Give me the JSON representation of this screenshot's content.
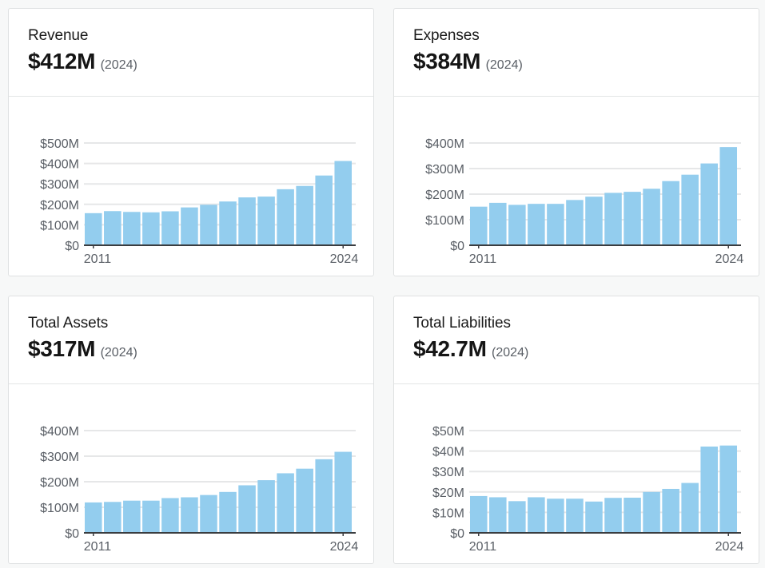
{
  "colors": {
    "bar": "#93cdee",
    "grid": "#e6e7e8",
    "axis": "#3a3d40",
    "label": "#5a5f66",
    "background": "#f7f8f8",
    "card": "#ffffff"
  },
  "cards": [
    {
      "title": "Revenue",
      "value": "$412M",
      "year": "(2024)"
    },
    {
      "title": "Expenses",
      "value": "$384M",
      "year": "(2024)"
    },
    {
      "title": "Total Assets",
      "value": "$317M",
      "year": "(2024)"
    },
    {
      "title": "Total Liabilities",
      "value": "$42.7M",
      "year": "(2024)"
    }
  ],
  "chart_data": [
    {
      "type": "bar",
      "title": "Revenue",
      "xlabel": "",
      "ylabel": "",
      "categories": [
        "2011",
        "2012",
        "2013",
        "2014",
        "2015",
        "2016",
        "2017",
        "2018",
        "2019",
        "2020",
        "2021",
        "2022",
        "2023",
        "2024"
      ],
      "x_tick_labels": [
        "2011",
        "2024"
      ],
      "values": [
        157,
        167,
        163,
        161,
        166,
        185,
        198,
        214,
        234,
        238,
        274,
        290,
        341,
        412
      ],
      "unit": "$M",
      "ylim": [
        0,
        500
      ],
      "y_ticks": [
        0,
        100,
        200,
        300,
        400,
        500
      ],
      "y_tick_labels": [
        "$0",
        "$100M",
        "$200M",
        "$300M",
        "$400M",
        "$500M"
      ],
      "grid": true
    },
    {
      "type": "bar",
      "title": "Expenses",
      "xlabel": "",
      "ylabel": "",
      "categories": [
        "2011",
        "2012",
        "2013",
        "2014",
        "2015",
        "2016",
        "2017",
        "2018",
        "2019",
        "2020",
        "2021",
        "2022",
        "2023",
        "2024"
      ],
      "x_tick_labels": [
        "2011",
        "2024"
      ],
      "values": [
        151,
        166,
        158,
        162,
        162,
        177,
        190,
        205,
        209,
        221,
        251,
        276,
        320,
        384
      ],
      "unit": "$M",
      "ylim": [
        0,
        400
      ],
      "y_ticks": [
        0,
        100,
        200,
        300,
        400
      ],
      "y_tick_labels": [
        "$0",
        "$100M",
        "$200M",
        "$300M",
        "$400M"
      ],
      "grid": true
    },
    {
      "type": "bar",
      "title": "Total Assets",
      "xlabel": "",
      "ylabel": "",
      "categories": [
        "2011",
        "2012",
        "2013",
        "2014",
        "2015",
        "2016",
        "2017",
        "2018",
        "2019",
        "2020",
        "2021",
        "2022",
        "2023",
        "2024"
      ],
      "x_tick_labels": [
        "2011",
        "2024"
      ],
      "values": [
        119,
        121,
        126,
        126,
        136,
        139,
        148,
        160,
        186,
        206,
        233,
        251,
        288,
        317
      ],
      "unit": "$M",
      "ylim": [
        0,
        400
      ],
      "y_ticks": [
        0,
        100,
        200,
        300,
        400
      ],
      "y_tick_labels": [
        "$0",
        "$100M",
        "$200M",
        "$300M",
        "$400M"
      ],
      "grid": true
    },
    {
      "type": "bar",
      "title": "Total Liabilities",
      "xlabel": "",
      "ylabel": "",
      "categories": [
        "2011",
        "2012",
        "2013",
        "2014",
        "2015",
        "2016",
        "2017",
        "2018",
        "2019",
        "2020",
        "2021",
        "2022",
        "2023",
        "2024"
      ],
      "x_tick_labels": [
        "2011",
        "2024"
      ],
      "values": [
        18.0,
        17.4,
        15.5,
        17.4,
        16.7,
        16.7,
        15.3,
        17.1,
        17.2,
        20.0,
        21.5,
        24.4,
        42.2,
        42.7
      ],
      "unit": "$M",
      "ylim": [
        0,
        50
      ],
      "y_ticks": [
        0,
        10,
        20,
        30,
        40,
        50
      ],
      "y_tick_labels": [
        "$0",
        "$10M",
        "$20M",
        "$30M",
        "$40M",
        "$50M"
      ],
      "grid": true
    }
  ]
}
